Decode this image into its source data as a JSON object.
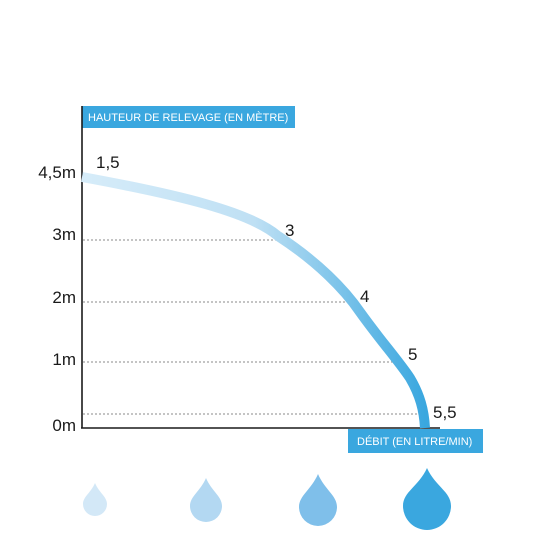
{
  "colors": {
    "accent": "#3aa7df",
    "curve_light": "#d6ecf9",
    "curve_dark": "#3aa7df",
    "axis": "#1a1a1a",
    "grid": "#8a8a8a",
    "drops": [
      "#d3e8f7",
      "#b3d8f2",
      "#7fbfea",
      "#3aa7df"
    ]
  },
  "chart_data": {
    "type": "line",
    "ylabel": "HAUTEUR DE RELEVAGE (EN MÈTRE)",
    "xlabel": "DÉBIT (EN LITRE/MIN)",
    "y_tick_labels": [
      "4,5m",
      "3m",
      "2m",
      "1m",
      "0m"
    ],
    "y_ticks": [
      4.5,
      3,
      2,
      1,
      0
    ],
    "ylim": [
      0,
      4.5
    ],
    "grid": "dashed horizontal lines at 3, 2, 1 and just above 0",
    "series": [
      {
        "points": [
          {
            "flow": 1.5,
            "label": "1,5",
            "height": 4.5
          },
          {
            "flow": 3,
            "label": "3",
            "height": 3
          },
          {
            "flow": 4,
            "label": "4",
            "height": 2
          },
          {
            "flow": 5,
            "label": "5",
            "height": 1
          },
          {
            "flow": 5.5,
            "label": "5,5",
            "height": 0
          }
        ]
      }
    ],
    "legend_icons": [
      "drop-small-icon",
      "drop-medium-icon",
      "drop-large-icon",
      "drop-xlarge-icon"
    ]
  }
}
